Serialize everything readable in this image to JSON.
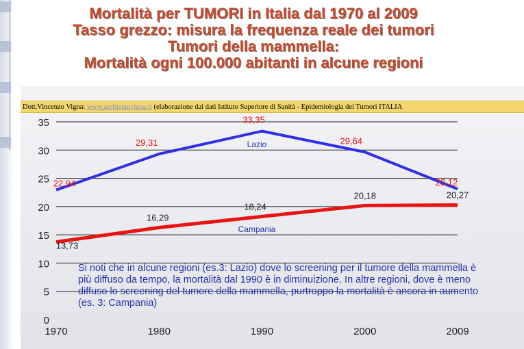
{
  "title_lines": [
    "Mortalità per TUMORI in Italia dal 1970 al 2009",
    "Tasso grezzo: misura la frequenza reale dei tumori",
    "Tumori della mammella:",
    "Mortalità ogni 100.000 abitanti in alcune regioni"
  ],
  "credit": {
    "author": "Dott.Vincenzo Vigna:",
    "link": "www.ambientevigna.it",
    "source": "(elaborazione dai dati Istituto Superiore di Sanità - Epidemiologia dei Tumori ITALIA"
  },
  "note": "Si noti che in alcune regioni (es.3: Lazio) dove lo screening per il tumore della mammella è più diffuso da tempo, la mortalità dal 1990 è in diminuizione. In altre regioni, dove è meno diffuso lo screening del tumore della mammella, purtroppo la mortalità è ancora in aumento (es. 3: Campania)",
  "colors": {
    "lazio": "#2f2fe6",
    "campania": "#e81414",
    "title": "#c94a2c",
    "credit_bg": "#f3d66e"
  },
  "chart_data": {
    "type": "line",
    "x": [
      1970,
      1980,
      1990,
      2000,
      2009
    ],
    "x_tick_labels": [
      "1970",
      "1980",
      "1990",
      "2000",
      "2009"
    ],
    "y_ticks": [
      0,
      5,
      10,
      15,
      20,
      25,
      30,
      35
    ],
    "y_tick_labels": [
      "0",
      "5",
      "10",
      "15",
      "20",
      "25",
      "30",
      "35"
    ],
    "ylim": [
      0,
      35
    ],
    "grid": "horizontal",
    "series": [
      {
        "name": "Lazio",
        "values": [
          22.94,
          29.31,
          33.35,
          29.64,
          23.12
        ],
        "labels": [
          "22,94",
          "29,31",
          "33,35",
          "29,64",
          "23,12"
        ]
      },
      {
        "name": "Campania",
        "values": [
          13.73,
          16.29,
          18.24,
          20.18,
          20.27
        ],
        "labels": [
          "13,73",
          "16,29",
          "18,24",
          "20,18",
          "20,27"
        ]
      }
    ]
  }
}
